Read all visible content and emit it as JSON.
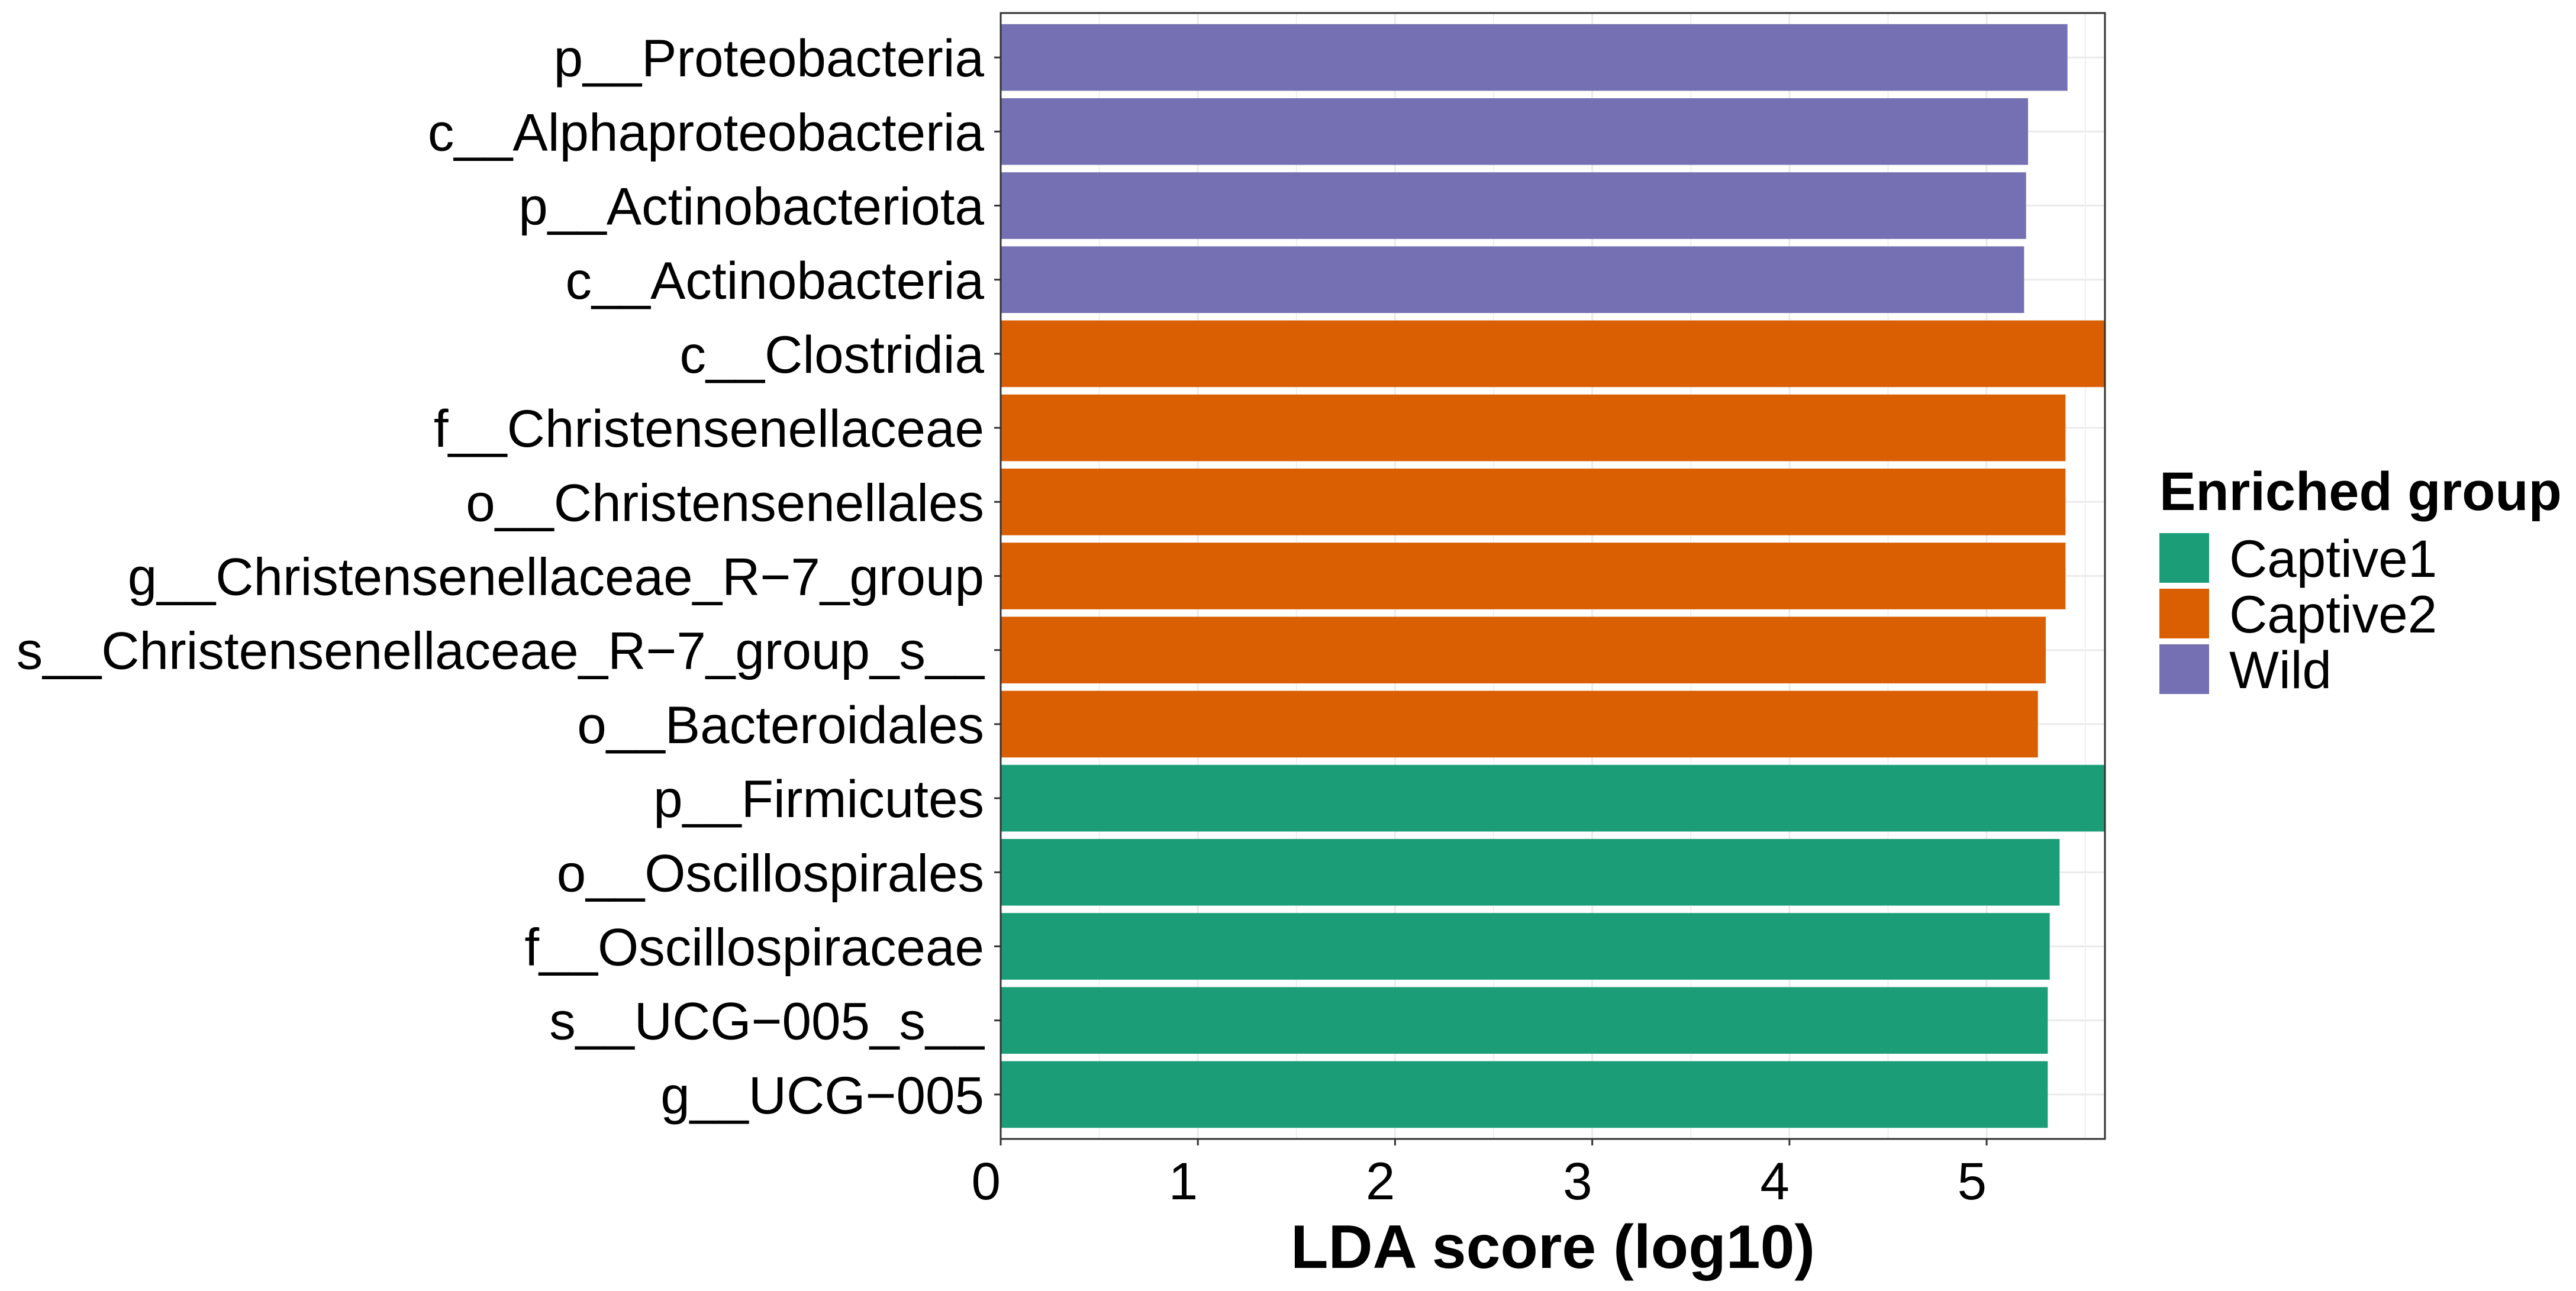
{
  "chart_data": {
    "type": "bar",
    "categories": [
      "p__Proteobacteria",
      "c__Alphaproteobacteria",
      "p__Actinobacteriota",
      "c__Actinobacteria",
      "c__Clostridia",
      "f__Christensenellaceae",
      "o__Christensenellales",
      "g__Christensenellaceae_R−7_group",
      "s__Christensenellaceae_R−7_group_s__",
      "o__Bacteroidales",
      "p__Firmicutes",
      "o__Oscillospirales",
      "f__Oscillospiraceae",
      "s__UCG−005_s__",
      "g__UCG−005"
    ],
    "values": [
      5.41,
      5.21,
      5.2,
      5.19,
      5.6,
      5.4,
      5.4,
      5.4,
      5.3,
      5.26,
      5.6,
      5.37,
      5.32,
      5.31,
      5.31
    ],
    "bar_series": [
      2,
      2,
      2,
      2,
      1,
      1,
      1,
      1,
      1,
      1,
      0,
      0,
      0,
      0,
      0
    ],
    "series": [
      {
        "name": "Captive1",
        "color": "#1B9E77"
      },
      {
        "name": "Captive2",
        "color": "#D95F02"
      },
      {
        "name": "Wild",
        "color": "#7570B3"
      }
    ],
    "xlabel": "LDA score (log10)",
    "xlim": [
      0,
      5.6
    ],
    "xticks": [
      0,
      1,
      2,
      3,
      4,
      5
    ],
    "grid": true,
    "legend": {
      "title": "Enriched group",
      "position": "right"
    }
  }
}
